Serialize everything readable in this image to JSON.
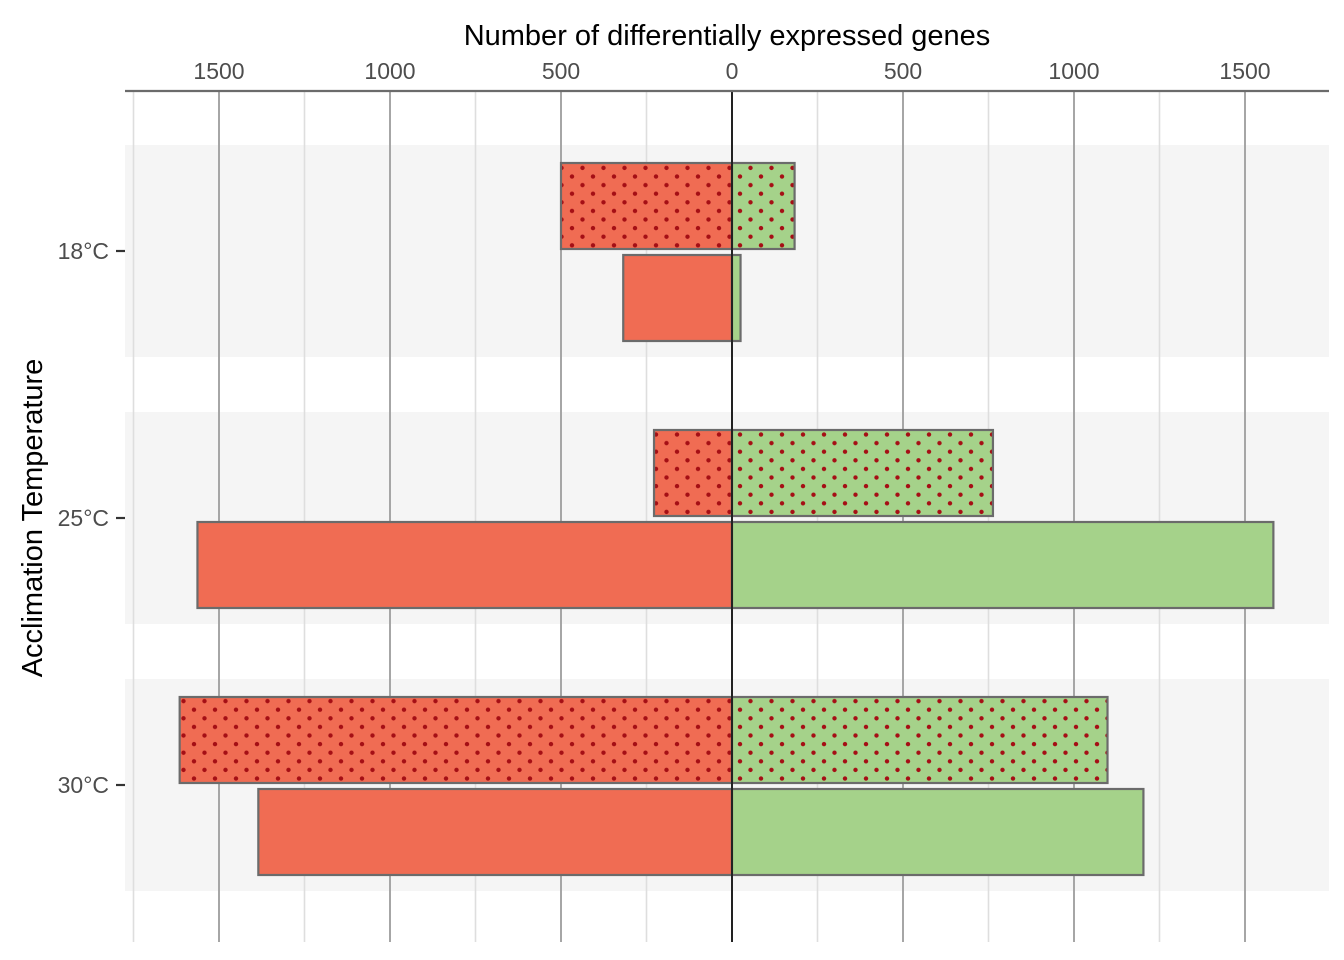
{
  "chart_data": {
    "type": "bar",
    "orientation": "horizontal-diverging",
    "xlabel": "Number of differentially expressed genes",
    "ylabel": "Acclimation Temperature",
    "x_axis_position": "top",
    "x_ticks": [
      -1500,
      -1000,
      -500,
      0,
      500,
      1000,
      1500
    ],
    "x_tick_labels": [
      "1500",
      "1000",
      "500",
      "0",
      "500",
      "1000",
      "1500"
    ],
    "xlim": [
      -1750,
      1750
    ],
    "categories": [
      "18°C",
      "25°C",
      "30°C"
    ],
    "grid": true,
    "legend": "none",
    "series": [
      {
        "pattern": "dots",
        "values": [
          {
            "down": -500,
            "up": 183
          },
          {
            "down": -228,
            "up": 763
          },
          {
            "down": -1615,
            "up": 1098
          }
        ]
      },
      {
        "pattern": "solid",
        "values": [
          {
            "down": -318,
            "up": 25
          },
          {
            "down": -1563,
            "up": 1583
          },
          {
            "down": -1385,
            "up": 1203
          }
        ]
      }
    ],
    "colors": {
      "down": "#f06c53",
      "up": "#a5d28a",
      "dots": "#a50f15",
      "outline": "#6b6b6b",
      "band": "#f5f5f5",
      "zero_line": "#222222"
    }
  }
}
